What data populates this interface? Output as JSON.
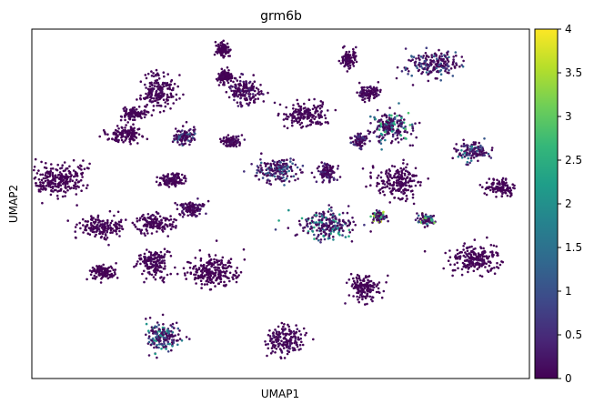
{
  "chart_data": {
    "type": "scatter",
    "title": "grm6b",
    "xlabel": "UMAP1",
    "ylabel": "UMAP2",
    "x_ticks_shown": false,
    "y_ticks_shown": false,
    "grid": false,
    "colorbar": {
      "colormap": "viridis",
      "range": [
        0,
        4
      ],
      "tick_values": [
        0,
        0.5,
        1,
        1.5,
        2,
        2.5,
        3,
        3.5,
        4
      ],
      "tick_labels": [
        "0",
        "0.5",
        "1",
        "1.5",
        "2",
        "2.5",
        "3",
        "3.5",
        "4"
      ],
      "gradient_stops": [
        "#440154",
        "#482777",
        "#3e4989",
        "#31688e",
        "#26828e",
        "#1f9e89",
        "#35b779",
        "#6ece58",
        "#b5de2b",
        "#fde725"
      ]
    },
    "clusters": [
      {
        "center": [
          -6.0,
          3.0
        ],
        "spread": [
          1.5,
          1.0
        ],
        "expression": 0.05
      },
      {
        "center": [
          -3.7,
          0.0
        ],
        "spread": [
          1.2,
          0.65
        ],
        "expression": 0.1
      },
      {
        "center": [
          -3.7,
          -2.8
        ],
        "spread": [
          0.7,
          0.45
        ],
        "expression": 0.05
      },
      {
        "center": [
          -2.4,
          5.9
        ],
        "spread": [
          1.0,
          0.5
        ],
        "expression": 0.05
      },
      {
        "center": [
          -2.0,
          7.2
        ],
        "spread": [
          0.7,
          0.35
        ],
        "expression": 0.1
      },
      {
        "center": [
          -0.9,
          -2.2
        ],
        "spread": [
          0.9,
          0.9
        ],
        "expression": 0.1
      },
      {
        "center": [
          -0.8,
          0.3
        ],
        "spread": [
          1.1,
          0.6
        ],
        "expression": 0.1
      },
      {
        "center": [
          -0.6,
          8.6
        ],
        "spread": [
          0.9,
          1.1
        ],
        "expression": 0.1
      },
      {
        "center": [
          -0.4,
          -6.8
        ],
        "spread": [
          1.0,
          0.9
        ],
        "expression": 1.5
      },
      {
        "center": [
          0.1,
          3.0
        ],
        "spread": [
          0.7,
          0.45
        ],
        "expression": 0.1
      },
      {
        "center": [
          0.8,
          5.7
        ],
        "spread": [
          0.6,
          0.5
        ],
        "expression": 0.9
      },
      {
        "center": [
          1.2,
          1.2
        ],
        "spread": [
          0.6,
          0.5
        ],
        "expression": 0.3
      },
      {
        "center": [
          2.4,
          -2.8
        ],
        "spread": [
          1.4,
          1.0
        ],
        "expression": 0.05
      },
      {
        "center": [
          3.0,
          9.5
        ],
        "spread": [
          0.45,
          0.45
        ],
        "expression": 0.05
      },
      {
        "center": [
          2.9,
          11.2
        ],
        "spread": [
          0.4,
          0.4
        ],
        "expression": 0.05
      },
      {
        "center": [
          3.3,
          5.4
        ],
        "spread": [
          0.5,
          0.35
        ],
        "expression": 0.2
      },
      {
        "center": [
          4.1,
          8.6
        ],
        "spread": [
          0.8,
          0.9
        ],
        "expression": 0.3
      },
      {
        "center": [
          5.8,
          3.6
        ],
        "spread": [
          1.2,
          0.75
        ],
        "expression": 1.0
      },
      {
        "center": [
          6.3,
          -7.1
        ],
        "spread": [
          1.0,
          0.85
        ],
        "expression": 0.2
      },
      {
        "center": [
          7.3,
          7.1
        ],
        "spread": [
          1.2,
          0.7
        ],
        "expression": 0.1
      },
      {
        "center": [
          8.5,
          3.5
        ],
        "spread": [
          0.6,
          0.6
        ],
        "expression": 0.4
      },
      {
        "center": [
          8.5,
          0.2
        ],
        "spread": [
          1.5,
          0.9
        ],
        "expression": 1.6
      },
      {
        "center": [
          9.7,
          10.6
        ],
        "spread": [
          0.4,
          0.6
        ],
        "expression": 0.1
      },
      {
        "center": [
          10.3,
          5.5
        ],
        "spread": [
          0.45,
          0.4
        ],
        "expression": 0.6
      },
      {
        "center": [
          10.5,
          -3.8
        ],
        "spread": [
          0.8,
          0.9
        ],
        "expression": 0.1
      },
      {
        "center": [
          10.8,
          8.5
        ],
        "spread": [
          0.55,
          0.5
        ],
        "expression": 0.2
      },
      {
        "center": [
          11.3,
          0.7
        ],
        "spread": [
          0.4,
          0.3
        ],
        "expression": 2.4
      },
      {
        "center": [
          12.0,
          6.3
        ],
        "spread": [
          1.1,
          1.0
        ],
        "expression": 1.8
      },
      {
        "center": [
          12.3,
          2.9
        ],
        "spread": [
          1.1,
          1.0
        ],
        "expression": 0.1
      },
      {
        "center": [
          13.9,
          0.5
        ],
        "spread": [
          0.45,
          0.35
        ],
        "expression": 2.4
      },
      {
        "center": [
          14.3,
          10.3
        ],
        "spread": [
          1.4,
          0.75
        ],
        "expression": 0.9
      },
      {
        "center": [
          16.4,
          4.8
        ],
        "spread": [
          0.8,
          0.6
        ],
        "expression": 1.2
      },
      {
        "center": [
          16.6,
          -2.0
        ],
        "spread": [
          1.3,
          0.9
        ],
        "expression": 0.1
      },
      {
        "center": [
          17.9,
          2.5
        ],
        "spread": [
          0.8,
          0.5
        ],
        "expression": 0.1
      }
    ]
  }
}
